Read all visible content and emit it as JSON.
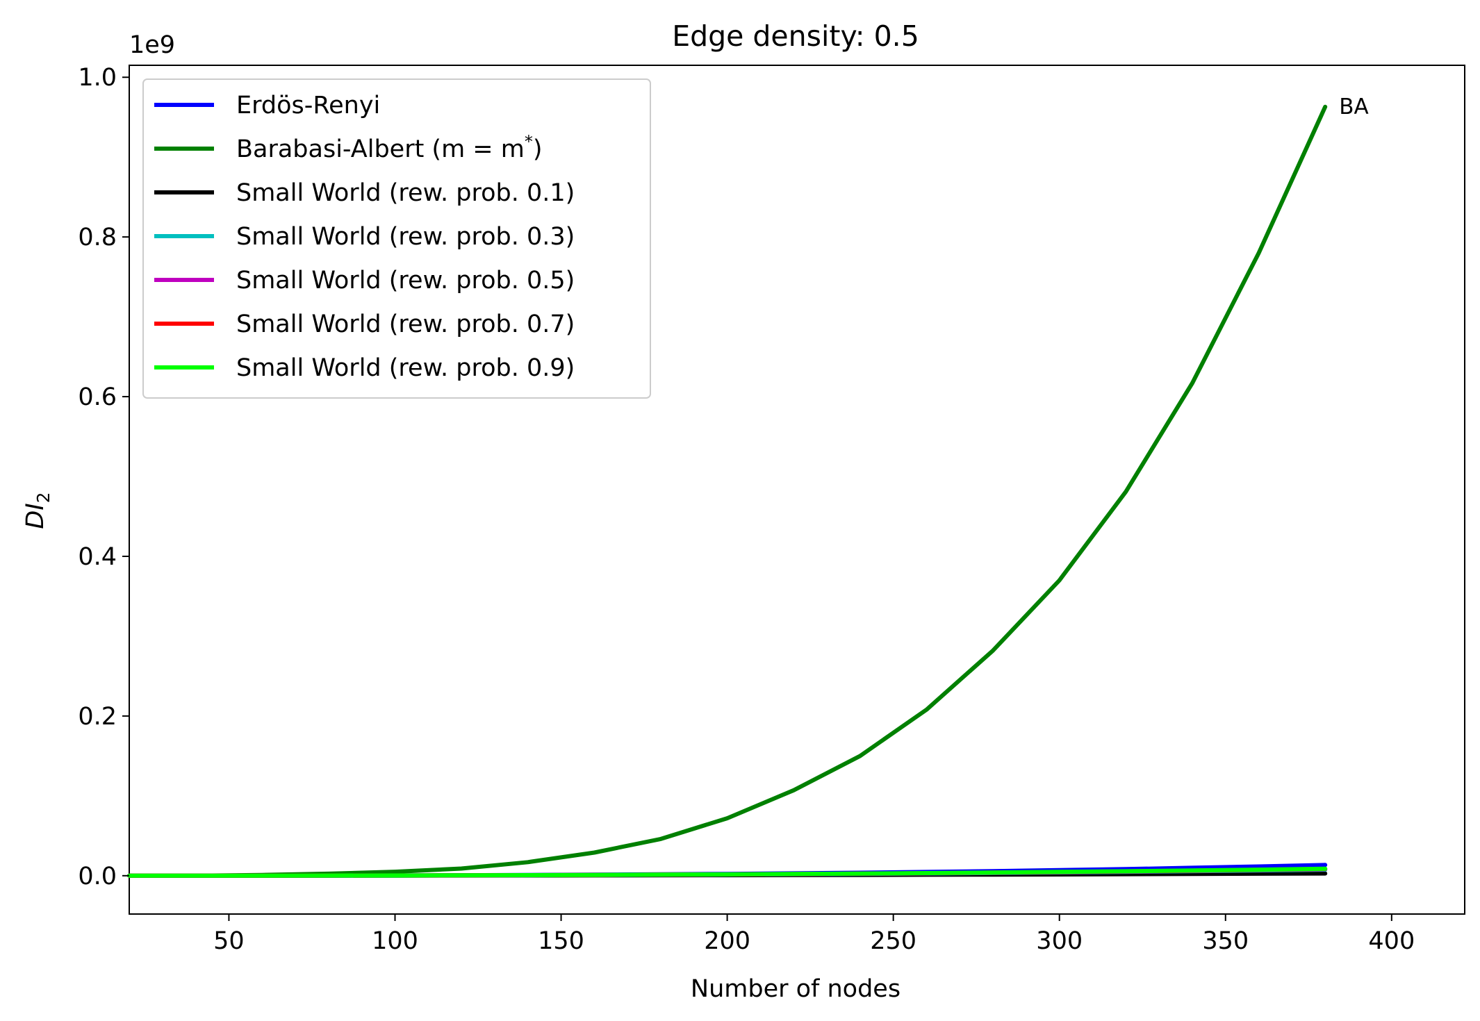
{
  "chart_data": {
    "type": "line",
    "title": "Edge density: 0.5",
    "xlabel": "Number of nodes",
    "ylabel_main": "DI",
    "ylabel_sub": "2",
    "y_offset_text": "1e9",
    "xlim": [
      20,
      422
    ],
    "ylim": [
      -0.048,
      1.015
    ],
    "xticks": [
      50,
      100,
      150,
      200,
      250,
      300,
      350,
      400
    ],
    "yticks": [
      0.0,
      0.2,
      0.4,
      0.6,
      0.8,
      1.0
    ],
    "ytick_labels": [
      "0.0",
      "0.2",
      "0.4",
      "0.6",
      "0.8",
      "1.0"
    ],
    "grid": false,
    "legend_position": "upper-left",
    "annotation": {
      "text": "BA",
      "x": 380,
      "y": 0.963
    },
    "x": [
      20,
      40,
      60,
      80,
      100,
      120,
      140,
      160,
      180,
      200,
      220,
      240,
      260,
      280,
      300,
      320,
      340,
      360,
      380
    ],
    "series": [
      {
        "name": "Erdös-Renyi",
        "color": "#0000ff",
        "values": [
          0.0,
          0.0,
          0.0001,
          0.0002,
          0.0004,
          0.0006,
          0.0009,
          0.0013,
          0.0018,
          0.0023,
          0.003,
          0.0038,
          0.0047,
          0.0058,
          0.007,
          0.0083,
          0.0099,
          0.0116,
          0.0135
        ]
      },
      {
        "name": "Barabasi-Albert (m = m*)",
        "name_base": "Barabasi-Albert (m = m",
        "name_sup": "*",
        "name_end": ")",
        "color": "#008000",
        "values": [
          0.0,
          0.0,
          0.001,
          0.0025,
          0.005,
          0.009,
          0.017,
          0.029,
          0.046,
          0.072,
          0.107,
          0.15,
          0.208,
          0.282,
          0.37,
          0.481,
          0.617,
          0.78,
          0.963
        ]
      },
      {
        "name": "Small World (rew. prob. 0.1)",
        "color": "#000000",
        "values": [
          0.0,
          0.0,
          0.0,
          0.0001,
          0.0001,
          0.0002,
          0.0003,
          0.0004,
          0.0005,
          0.0006,
          0.0008,
          0.001,
          0.0012,
          0.0014,
          0.0016,
          0.0019,
          0.0022,
          0.0025,
          0.0028
        ]
      },
      {
        "name": "Small World (rew. prob. 0.3)",
        "color": "#00bfbf",
        "values": [
          0.0,
          0.0,
          0.0001,
          0.0001,
          0.0002,
          0.0004,
          0.0006,
          0.0008,
          0.0011,
          0.0014,
          0.0018,
          0.0023,
          0.0028,
          0.0034,
          0.0041,
          0.0049,
          0.0057,
          0.0066,
          0.0076
        ]
      },
      {
        "name": "Small World (rew. prob. 0.5)",
        "color": "#bf00bf",
        "values": [
          0.0,
          0.0,
          0.0001,
          0.0002,
          0.0003,
          0.0004,
          0.0006,
          0.0009,
          0.0012,
          0.0016,
          0.002,
          0.0025,
          0.0031,
          0.0038,
          0.0045,
          0.0053,
          0.0062,
          0.0072,
          0.0083
        ]
      },
      {
        "name": "Small World (rew. prob. 0.7)",
        "color": "#ff0000",
        "values": [
          0.0,
          0.0,
          0.0001,
          0.0002,
          0.0003,
          0.0005,
          0.0007,
          0.0009,
          0.0013,
          0.0016,
          0.0021,
          0.0026,
          0.0032,
          0.0039,
          0.0046,
          0.0055,
          0.0064,
          0.0074,
          0.0085
        ]
      },
      {
        "name": "Small World (rew. prob. 0.9)",
        "color": "#00ff00",
        "values": [
          0.0,
          0.0,
          0.0001,
          0.0002,
          0.0003,
          0.0005,
          0.0007,
          0.001,
          0.0013,
          0.0017,
          0.0022,
          0.0027,
          0.0033,
          0.004,
          0.0048,
          0.0056,
          0.0066,
          0.0076,
          0.0088
        ]
      }
    ]
  }
}
